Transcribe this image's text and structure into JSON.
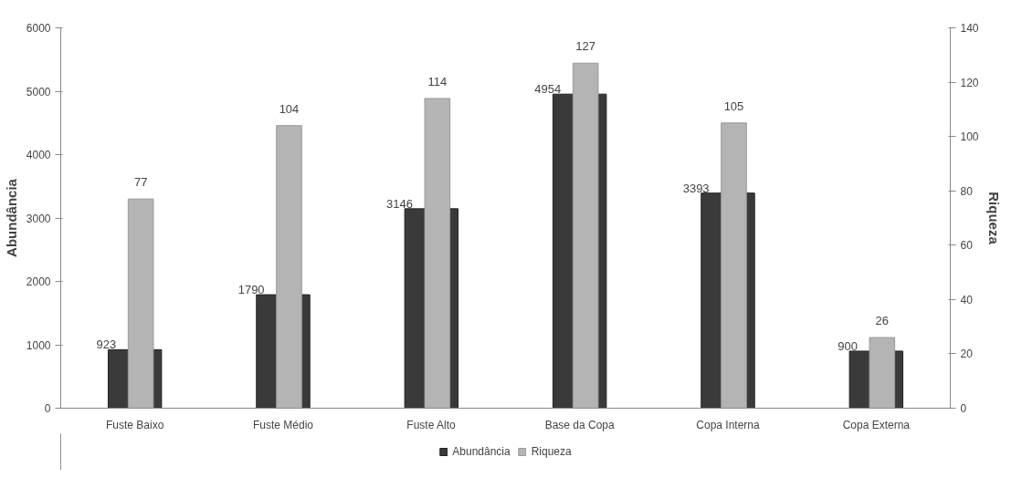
{
  "chart_data": {
    "type": "bar",
    "ylabel": "Abundância",
    "y2label": "Riqueza",
    "categories": [
      "Fuste Baixo",
      "Fuste Médio",
      "Fuste Alto",
      "Base da Copa",
      "Copa Interna",
      "Copa Externa"
    ],
    "series": [
      {
        "name": "Abundância",
        "color": "#3a3a3a",
        "values": [
          923,
          1790,
          3146,
          4954,
          3393,
          900
        ]
      },
      {
        "name": "Riqueza",
        "color": "#b4b4b4",
        "values": [
          77,
          104,
          114,
          127,
          105,
          26
        ],
        "axis": "y2"
      }
    ],
    "ylim": [
      0,
      6000
    ],
    "yticks": [
      0,
      1000,
      2000,
      3000,
      4000,
      5000,
      6000
    ],
    "y2lim": [
      0,
      140
    ],
    "y2ticks": [
      0,
      20,
      40,
      60,
      80,
      100,
      120,
      140
    ],
    "data_labels": true,
    "grid": false,
    "legend": "bottom"
  }
}
